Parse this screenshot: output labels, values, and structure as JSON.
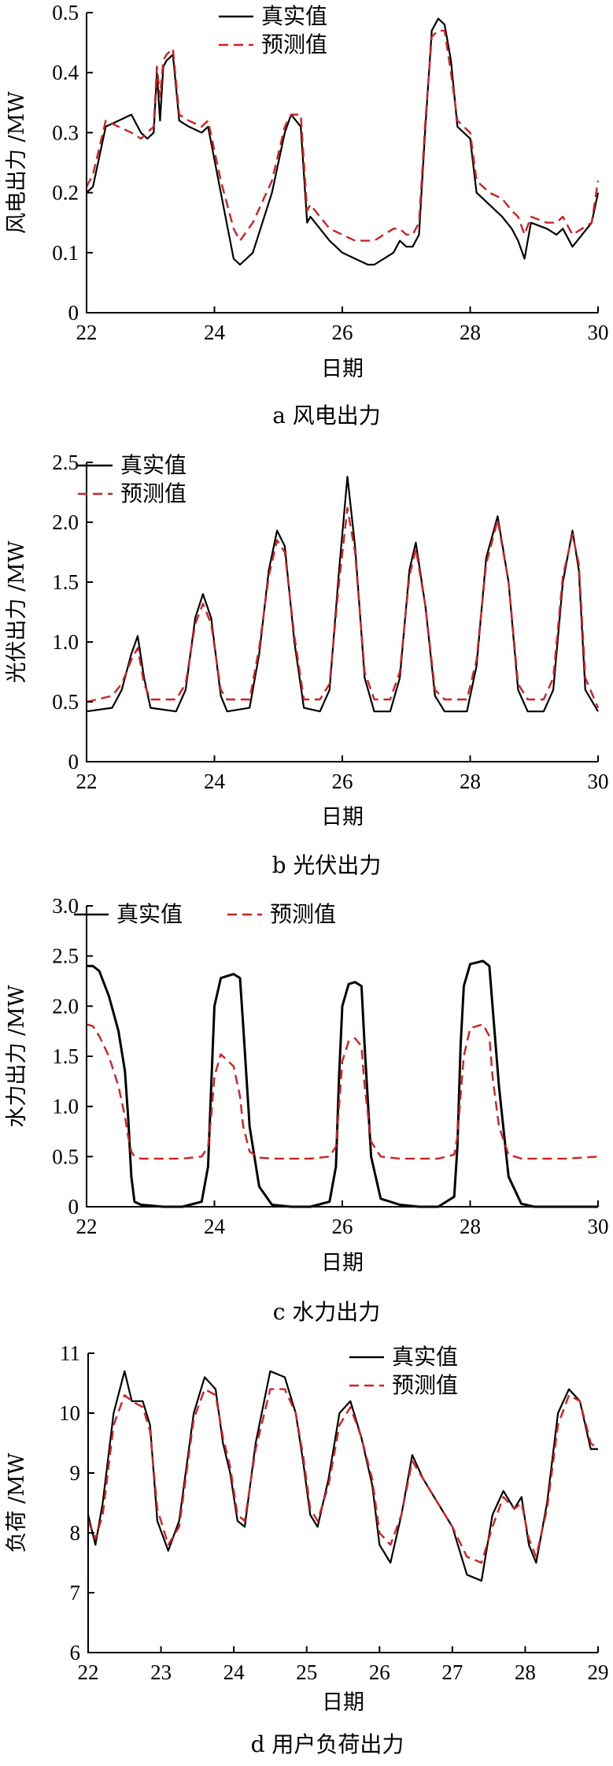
{
  "chart_data": [
    {
      "type": "line",
      "caption": "a 风电出力",
      "xlabel": "日期",
      "ylabel": "风电出力 /MW",
      "xlim": [
        22,
        30
      ],
      "ylim": [
        0,
        0.5
      ],
      "xticks": [
        "22",
        "24",
        "26",
        "28",
        "30"
      ],
      "yticks": [
        "0",
        "0.1",
        "0.2",
        "0.3",
        "0.4",
        "0.5"
      ],
      "legend": {
        "position": "top-center",
        "labels": [
          "真实值",
          "预测值"
        ]
      },
      "series": [
        {
          "name": "真实值",
          "style": "solid",
          "color": "#000000",
          "x": [
            22.0,
            22.1,
            22.3,
            22.5,
            22.7,
            22.85,
            22.95,
            23.05,
            23.1,
            23.15,
            23.2,
            23.25,
            23.35,
            23.45,
            23.6,
            23.8,
            23.9,
            24.1,
            24.3,
            24.4,
            24.6,
            24.9,
            25.1,
            25.2,
            25.35,
            25.45,
            25.5,
            25.65,
            25.8,
            26.0,
            26.2,
            26.4,
            26.5,
            26.65,
            26.8,
            26.9,
            27.0,
            27.1,
            27.2,
            27.3,
            27.4,
            27.5,
            27.6,
            27.7,
            27.8,
            27.9,
            28.0,
            28.1,
            28.3,
            28.5,
            28.65,
            28.75,
            28.85,
            28.95,
            29.2,
            29.35,
            29.45,
            29.6,
            29.75,
            29.9,
            30.0
          ],
          "y": [
            0.2,
            0.21,
            0.31,
            0.32,
            0.33,
            0.3,
            0.29,
            0.3,
            0.4,
            0.32,
            0.41,
            0.42,
            0.43,
            0.32,
            0.31,
            0.3,
            0.31,
            0.2,
            0.09,
            0.08,
            0.1,
            0.2,
            0.3,
            0.33,
            0.31,
            0.15,
            0.16,
            0.14,
            0.12,
            0.1,
            0.09,
            0.08,
            0.08,
            0.09,
            0.1,
            0.12,
            0.11,
            0.11,
            0.13,
            0.31,
            0.47,
            0.49,
            0.48,
            0.42,
            0.31,
            0.3,
            0.29,
            0.2,
            0.18,
            0.16,
            0.14,
            0.12,
            0.09,
            0.15,
            0.14,
            0.13,
            0.14,
            0.11,
            0.13,
            0.15,
            0.2
          ]
        },
        {
          "name": "预测值",
          "style": "dashed",
          "color": "#d42020",
          "x": [
            22.0,
            22.1,
            22.3,
            22.5,
            22.7,
            22.85,
            22.95,
            23.05,
            23.1,
            23.15,
            23.2,
            23.25,
            23.35,
            23.45,
            23.6,
            23.8,
            23.9,
            24.1,
            24.3,
            24.4,
            24.6,
            24.9,
            25.1,
            25.2,
            25.35,
            25.45,
            25.5,
            25.65,
            25.8,
            26.0,
            26.2,
            26.4,
            26.5,
            26.65,
            26.8,
            26.9,
            27.0,
            27.1,
            27.2,
            27.3,
            27.4,
            27.5,
            27.6,
            27.7,
            27.8,
            27.9,
            28.0,
            28.1,
            28.3,
            28.5,
            28.65,
            28.75,
            28.85,
            28.95,
            29.2,
            29.35,
            29.45,
            29.6,
            29.75,
            29.9,
            30.0
          ],
          "y": [
            0.21,
            0.23,
            0.32,
            0.31,
            0.3,
            0.29,
            0.3,
            0.31,
            0.41,
            0.36,
            0.42,
            0.43,
            0.44,
            0.33,
            0.32,
            0.31,
            0.32,
            0.22,
            0.14,
            0.12,
            0.15,
            0.22,
            0.31,
            0.33,
            0.33,
            0.17,
            0.18,
            0.16,
            0.14,
            0.13,
            0.12,
            0.12,
            0.12,
            0.13,
            0.14,
            0.14,
            0.13,
            0.13,
            0.15,
            0.32,
            0.46,
            0.47,
            0.47,
            0.4,
            0.32,
            0.31,
            0.3,
            0.22,
            0.2,
            0.19,
            0.17,
            0.16,
            0.13,
            0.16,
            0.15,
            0.15,
            0.16,
            0.13,
            0.14,
            0.15,
            0.22
          ]
        }
      ]
    },
    {
      "type": "line",
      "caption": "b 光伏出力",
      "xlabel": "日期",
      "ylabel": "光伏出力 /MW",
      "xlim": [
        22,
        30
      ],
      "ylim": [
        0,
        2.5
      ],
      "xticks": [
        "22",
        "24",
        "26",
        "28",
        "30"
      ],
      "yticks": [
        "0",
        "0.5",
        "1.0",
        "1.5",
        "2.0",
        "2.5"
      ],
      "legend": {
        "position": "top-left",
        "labels": [
          "真实值",
          "预测值"
        ]
      },
      "series": [
        {
          "name": "真实值",
          "style": "solid",
          "color": "#000000",
          "x": [
            22.0,
            22.4,
            22.55,
            22.7,
            22.8,
            22.9,
            23.0,
            23.4,
            23.55,
            23.7,
            23.82,
            23.95,
            24.1,
            24.2,
            24.55,
            24.7,
            24.85,
            24.98,
            25.1,
            25.25,
            25.4,
            25.65,
            25.8,
            25.95,
            26.08,
            26.2,
            26.35,
            26.5,
            26.75,
            26.9,
            27.05,
            27.15,
            27.3,
            27.45,
            27.6,
            27.95,
            28.1,
            28.25,
            28.43,
            28.6,
            28.75,
            28.9,
            29.15,
            29.3,
            29.45,
            29.6,
            29.7,
            29.8,
            30.0
          ],
          "y": [
            0.42,
            0.45,
            0.6,
            0.9,
            1.05,
            0.7,
            0.45,
            0.42,
            0.6,
            1.2,
            1.4,
            1.2,
            0.55,
            0.42,
            0.45,
            0.9,
            1.6,
            1.93,
            1.8,
            1.0,
            0.45,
            0.42,
            0.6,
            1.6,
            2.38,
            1.8,
            0.7,
            0.42,
            0.42,
            0.7,
            1.6,
            1.83,
            1.3,
            0.55,
            0.42,
            0.42,
            0.8,
            1.7,
            2.05,
            1.5,
            0.6,
            0.42,
            0.42,
            0.6,
            1.5,
            1.93,
            1.6,
            0.6,
            0.42
          ]
        },
        {
          "name": "预测值",
          "style": "dashed",
          "color": "#d42020",
          "x": [
            22.0,
            22.4,
            22.55,
            22.7,
            22.8,
            22.9,
            23.0,
            23.4,
            23.55,
            23.7,
            23.82,
            23.95,
            24.1,
            24.2,
            24.55,
            24.7,
            24.85,
            24.98,
            25.1,
            25.25,
            25.4,
            25.65,
            25.8,
            25.95,
            26.08,
            26.2,
            26.35,
            26.5,
            26.75,
            26.9,
            27.05,
            27.15,
            27.3,
            27.45,
            27.6,
            27.95,
            28.1,
            28.25,
            28.43,
            28.6,
            28.75,
            28.9,
            29.15,
            29.3,
            29.45,
            29.6,
            29.7,
            29.8,
            30.0
          ],
          "y": [
            0.5,
            0.55,
            0.65,
            0.85,
            0.95,
            0.65,
            0.52,
            0.52,
            0.65,
            1.15,
            1.32,
            1.15,
            0.6,
            0.52,
            0.52,
            0.95,
            1.55,
            1.85,
            1.75,
            1.05,
            0.52,
            0.52,
            0.65,
            1.5,
            2.12,
            1.75,
            0.75,
            0.52,
            0.52,
            0.75,
            1.55,
            1.78,
            1.3,
            0.6,
            0.52,
            0.52,
            0.85,
            1.65,
            2.02,
            1.5,
            0.65,
            0.52,
            0.52,
            0.7,
            1.55,
            1.9,
            1.65,
            0.7,
            0.45
          ]
        }
      ]
    },
    {
      "type": "line",
      "caption": "c 水力出力",
      "xlabel": "日期",
      "ylabel": "水力出力 /MW",
      "xlim": [
        22,
        30
      ],
      "ylim": [
        0,
        3.0
      ],
      "xticks": [
        "22",
        "24",
        "26",
        "28",
        "30"
      ],
      "yticks": [
        "0",
        "0.5",
        "1.0",
        "1.5",
        "2.0",
        "2.5",
        "3.0"
      ],
      "legend": {
        "position": "top-center",
        "labels": [
          "真实值",
          "预测值"
        ]
      },
      "series": [
        {
          "name": "真实值",
          "style": "solid",
          "color": "#000000",
          "x": [
            22.0,
            22.1,
            22.2,
            22.35,
            22.5,
            22.6,
            22.65,
            22.7,
            22.75,
            22.85,
            23.2,
            23.5,
            23.8,
            23.9,
            23.95,
            24.0,
            24.1,
            24.3,
            24.4,
            24.45,
            24.55,
            24.7,
            24.9,
            25.2,
            25.5,
            25.8,
            25.9,
            25.95,
            26.0,
            26.1,
            26.2,
            26.3,
            26.35,
            26.45,
            26.6,
            26.9,
            27.2,
            27.5,
            27.75,
            27.8,
            27.85,
            27.9,
            28.0,
            28.2,
            28.3,
            28.35,
            28.45,
            28.6,
            28.8,
            29.0,
            29.5,
            30.0
          ],
          "y": [
            2.4,
            2.4,
            2.35,
            2.1,
            1.75,
            1.35,
            0.9,
            0.3,
            0.05,
            0.02,
            0.0,
            0.0,
            0.05,
            0.4,
            1.2,
            2.0,
            2.28,
            2.32,
            2.28,
            1.8,
            0.8,
            0.2,
            0.02,
            0.0,
            0.0,
            0.05,
            0.4,
            1.3,
            2.0,
            2.22,
            2.24,
            2.2,
            1.6,
            0.5,
            0.08,
            0.02,
            0.0,
            0.0,
            0.1,
            0.6,
            1.6,
            2.2,
            2.42,
            2.45,
            2.4,
            2.0,
            1.2,
            0.3,
            0.03,
            0.0,
            0.0,
            0.0
          ]
        },
        {
          "name": "预测值",
          "style": "dashed",
          "color": "#d42020",
          "x": [
            22.0,
            22.1,
            22.2,
            22.35,
            22.5,
            22.6,
            22.65,
            22.7,
            22.75,
            22.85,
            23.2,
            23.5,
            23.8,
            23.9,
            23.95,
            24.0,
            24.1,
            24.3,
            24.4,
            24.45,
            24.55,
            24.7,
            24.9,
            25.2,
            25.5,
            25.8,
            25.9,
            25.95,
            26.0,
            26.1,
            26.2,
            26.3,
            26.35,
            26.45,
            26.6,
            26.9,
            27.2,
            27.5,
            27.75,
            27.8,
            27.85,
            27.9,
            28.0,
            28.2,
            28.3,
            28.35,
            28.45,
            28.6,
            28.8,
            29.0,
            29.5,
            30.0
          ],
          "y": [
            1.82,
            1.8,
            1.7,
            1.5,
            1.2,
            0.9,
            0.7,
            0.55,
            0.5,
            0.48,
            0.48,
            0.48,
            0.5,
            0.6,
            0.9,
            1.3,
            1.52,
            1.4,
            1.1,
            0.8,
            0.55,
            0.49,
            0.48,
            0.48,
            0.48,
            0.5,
            0.6,
            1.0,
            1.45,
            1.65,
            1.68,
            1.6,
            1.2,
            0.65,
            0.5,
            0.48,
            0.48,
            0.48,
            0.52,
            0.7,
            1.1,
            1.5,
            1.78,
            1.82,
            1.7,
            1.3,
            0.8,
            0.52,
            0.48,
            0.48,
            0.48,
            0.5
          ]
        }
      ]
    },
    {
      "type": "line",
      "caption": "d 用户负荷出力",
      "xlabel": "日期",
      "ylabel": "负荷 /MW",
      "xlim": [
        22,
        29
      ],
      "ylim": [
        6,
        11
      ],
      "xticks": [
        "22",
        "23",
        "24",
        "25",
        "26",
        "27",
        "28",
        "29"
      ],
      "yticks": [
        "6",
        "7",
        "8",
        "9",
        "10",
        "11"
      ],
      "legend": {
        "position": "top-right",
        "labels": [
          "真实值",
          "预测值"
        ]
      },
      "series": [
        {
          "name": "真实值",
          "style": "solid",
          "color": "#000000",
          "x": [
            22.0,
            22.1,
            22.2,
            22.35,
            22.5,
            22.6,
            22.75,
            22.85,
            22.95,
            23.1,
            23.25,
            23.45,
            23.6,
            23.75,
            23.85,
            23.95,
            24.05,
            24.15,
            24.3,
            24.5,
            24.7,
            24.85,
            24.95,
            25.05,
            25.15,
            25.3,
            25.45,
            25.6,
            25.75,
            25.9,
            26.0,
            26.15,
            26.3,
            26.45,
            26.6,
            26.8,
            27.0,
            27.2,
            27.4,
            27.55,
            27.7,
            27.85,
            27.95,
            28.05,
            28.15,
            28.3,
            28.45,
            28.6,
            28.75,
            28.9,
            29.0
          ],
          "y": [
            8.3,
            7.8,
            8.5,
            10.0,
            10.7,
            10.2,
            10.2,
            9.8,
            8.2,
            7.7,
            8.2,
            10.0,
            10.6,
            10.4,
            9.5,
            9.0,
            8.2,
            8.1,
            9.5,
            10.7,
            10.6,
            10.0,
            9.2,
            8.3,
            8.1,
            8.9,
            10.0,
            10.2,
            9.6,
            8.8,
            7.8,
            7.5,
            8.3,
            9.3,
            8.9,
            8.5,
            8.1,
            7.3,
            7.2,
            8.3,
            8.7,
            8.4,
            8.6,
            7.8,
            7.5,
            8.5,
            10.0,
            10.4,
            10.2,
            9.4,
            9.4
          ]
        },
        {
          "name": "预测值",
          "style": "dashed",
          "color": "#d42020",
          "x": [
            22.0,
            22.1,
            22.2,
            22.35,
            22.5,
            22.6,
            22.75,
            22.85,
            22.95,
            23.1,
            23.25,
            23.45,
            23.6,
            23.75,
            23.85,
            23.95,
            24.05,
            24.15,
            24.3,
            24.5,
            24.7,
            24.85,
            24.95,
            25.05,
            25.15,
            25.3,
            25.45,
            25.6,
            25.75,
            25.9,
            26.0,
            26.15,
            26.3,
            26.45,
            26.6,
            26.8,
            27.0,
            27.2,
            27.4,
            27.55,
            27.7,
            27.85,
            27.95,
            28.05,
            28.15,
            28.3,
            28.45,
            28.6,
            28.75,
            28.9,
            29.0
          ],
          "y": [
            8.2,
            7.9,
            8.3,
            9.8,
            10.3,
            10.2,
            10.1,
            9.7,
            8.4,
            7.8,
            8.1,
            9.9,
            10.4,
            10.3,
            9.6,
            9.1,
            8.3,
            8.2,
            9.4,
            10.4,
            10.4,
            10.0,
            9.3,
            8.4,
            8.2,
            8.8,
            9.8,
            10.1,
            9.6,
            8.9,
            8.0,
            7.8,
            8.3,
            9.2,
            8.9,
            8.5,
            8.1,
            7.6,
            7.5,
            8.1,
            8.6,
            8.4,
            8.5,
            7.9,
            7.6,
            8.4,
            9.8,
            10.3,
            10.2,
            9.5,
            9.4
          ]
        }
      ]
    }
  ]
}
